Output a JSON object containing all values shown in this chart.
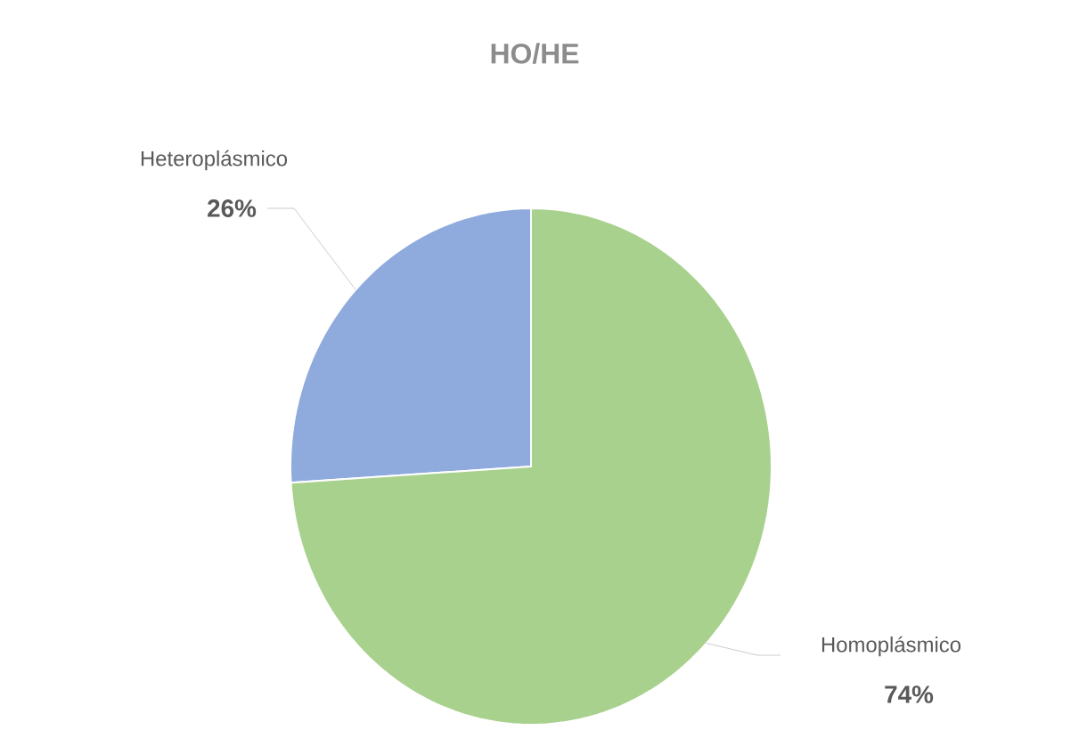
{
  "chart_data": {
    "type": "pie",
    "title": "HO/HE",
    "categories": [
      "Heteroplásmico",
      "Homoplásmico"
    ],
    "values": [
      26,
      74
    ],
    "value_labels": [
      "26%",
      "74%"
    ],
    "colors": [
      "#8faadc",
      "#a9d18e"
    ]
  }
}
